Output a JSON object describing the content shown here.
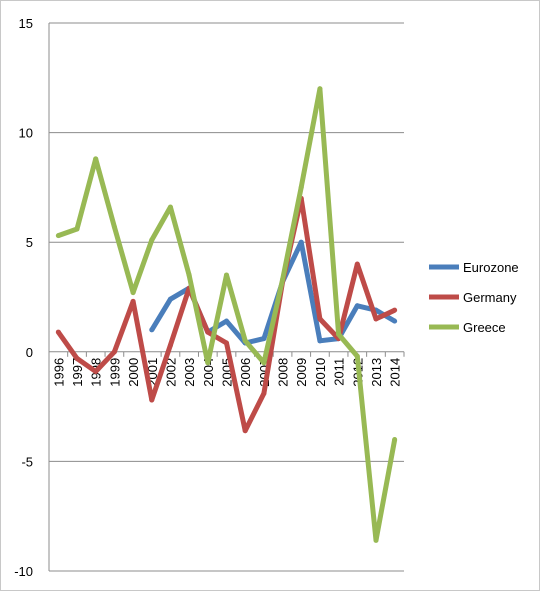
{
  "chart_data": {
    "type": "line",
    "title": "",
    "xlabel": "",
    "ylabel": "",
    "categories": [
      "1996",
      "1997",
      "1998",
      "1999",
      "2000",
      "2001",
      "2002",
      "2003",
      "2004",
      "2005",
      "2006",
      "2007",
      "2008",
      "2009",
      "2010",
      "2011",
      "2012",
      "2013",
      "2014"
    ],
    "ylim": [
      -10,
      15
    ],
    "yticks": [
      -10,
      -5,
      0,
      5,
      10,
      15
    ],
    "grid": true,
    "legend_position": "right",
    "series": [
      {
        "name": "Eurozone",
        "color": "#4a7ebb",
        "values": [
          null,
          null,
          null,
          null,
          null,
          1.0,
          2.4,
          2.9,
          0.9,
          1.4,
          0.4,
          0.6,
          3.2,
          5.0,
          0.5,
          0.6,
          2.1,
          1.9,
          1.4
        ]
      },
      {
        "name": "Germany",
        "color": "#be4b48",
        "values": [
          0.9,
          -0.3,
          -0.9,
          0.0,
          2.3,
          -2.2,
          0.3,
          2.9,
          0.9,
          0.4,
          -3.6,
          -1.9,
          3.2,
          7.0,
          1.5,
          0.6,
          4.0,
          1.5,
          1.9
        ]
      },
      {
        "name": "Greece",
        "color": "#98b954",
        "values": [
          5.3,
          5.6,
          8.8,
          5.7,
          2.7,
          5.1,
          6.6,
          3.5,
          -0.5,
          3.5,
          0.5,
          -0.5,
          3.3,
          7.5,
          12.0,
          0.8,
          -0.2,
          -8.6,
          -4.0
        ]
      }
    ]
  }
}
